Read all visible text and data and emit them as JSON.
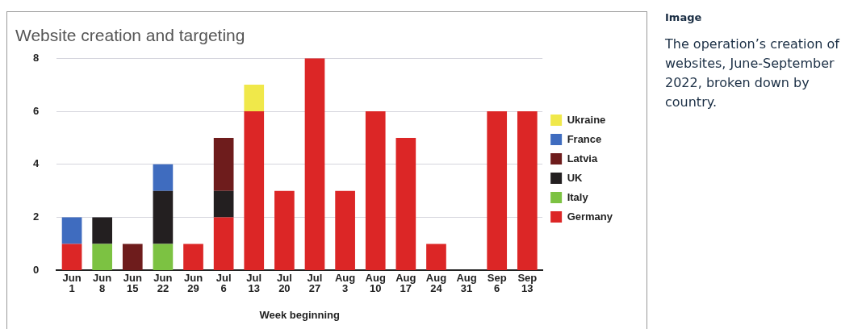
{
  "chart_data": {
    "type": "bar",
    "title": "Website creation and targeting",
    "xlabel": "Week beginning",
    "categories": [
      "Jun 1",
      "Jun 8",
      "Jun 15",
      "Jun 22",
      "Jun 29",
      "Jul 6",
      "Jul 13",
      "Jul 20",
      "Jul 27",
      "Aug 3",
      "Aug 10",
      "Aug 17",
      "Aug 24",
      "Aug 31",
      "Sep 6",
      "Sep 13"
    ],
    "stacked": true,
    "ylim": [
      0,
      8
    ],
    "yticks": [
      0,
      2,
      4,
      6,
      8
    ],
    "grid": "y",
    "legend": "right",
    "series": [
      {
        "name": "Germany",
        "color": "#dc2626",
        "values": [
          1,
          0,
          0,
          0,
          1,
          2,
          6,
          3,
          8,
          3,
          6,
          5,
          1,
          0,
          6,
          6
        ]
      },
      {
        "name": "Italy",
        "color": "#7cc242",
        "values": [
          0,
          1,
          0,
          1,
          0,
          0,
          0,
          0,
          0,
          0,
          0,
          0,
          0,
          0,
          0,
          0
        ]
      },
      {
        "name": "UK",
        "color": "#231f20",
        "values": [
          0,
          1,
          0,
          2,
          0,
          1,
          0,
          0,
          0,
          0,
          0,
          0,
          0,
          0,
          0,
          0
        ]
      },
      {
        "name": "Latvia",
        "color": "#6e1c1c",
        "values": [
          0,
          0,
          1,
          0,
          0,
          2,
          0,
          0,
          0,
          0,
          0,
          0,
          0,
          0,
          0,
          0
        ]
      },
      {
        "name": "France",
        "color": "#3f6cbf",
        "values": [
          1,
          0,
          0,
          1,
          0,
          0,
          0,
          0,
          0,
          0,
          0,
          0,
          0,
          0,
          0,
          0
        ]
      },
      {
        "name": "Ukraine",
        "color": "#f0e84a",
        "values": [
          0,
          0,
          0,
          0,
          0,
          0,
          1,
          0,
          0,
          0,
          0,
          0,
          0,
          0,
          0,
          0
        ]
      }
    ],
    "annotations": [
      "Image",
      "The operation’s creation of websites, June-September 2022, broken down by country."
    ]
  }
}
